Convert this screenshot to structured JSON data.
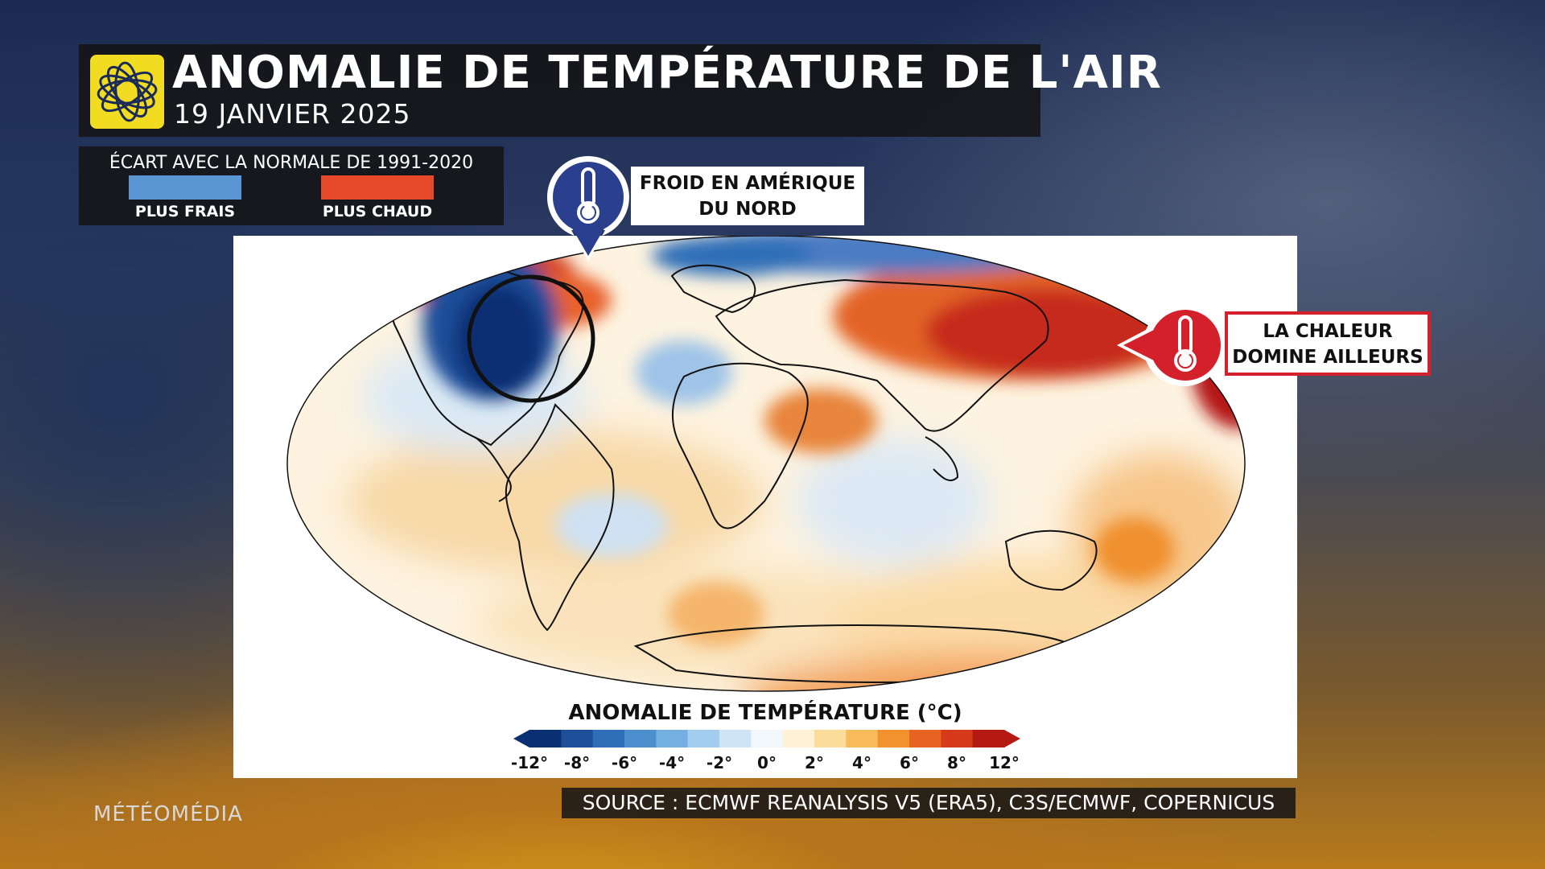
{
  "header": {
    "title": "ANOMALIE DE TEMPÉRATURE DE L'AIR",
    "subtitle": "19 JANVIER 2025"
  },
  "legend": {
    "title": "ÉCART AVEC LA NORMALE DE 1991-2020",
    "cool_label": "PLUS FRAIS",
    "warm_label": "PLUS CHAUD",
    "cool_color": "#5a96d4",
    "warm_color": "#e5492a"
  },
  "callouts": {
    "cold": {
      "line1": "FROID EN AMÉRIQUE",
      "line2": "DU NORD",
      "icon": "thermometer-cold-icon",
      "color": "#2a3f8e"
    },
    "warm": {
      "line1": "LA CHALEUR",
      "line2": "DOMINE AILLEURS",
      "icon": "thermometer-hot-icon",
      "color": "#d4202a"
    }
  },
  "colorbar": {
    "title": "ANOMALIE DE TEMPÉRATURE (°C)",
    "ticks": [
      "-12°",
      "-8°",
      "-6°",
      "-4°",
      "-2°",
      "0°",
      "2°",
      "4°",
      "6°",
      "8°",
      "12°"
    ],
    "colors": [
      "#0b2f73",
      "#1d4e99",
      "#2f6eb8",
      "#4b8fce",
      "#73afe0",
      "#a3cdee",
      "#cfe5f6",
      "#f2f7fb",
      "#fdf2d6",
      "#fbdc9a",
      "#f7bb5c",
      "#f1922f",
      "#e76422",
      "#d63a1b",
      "#b41914"
    ]
  },
  "source": "SOURCE : ECMWF REANALYSIS V5 (ERA5), C3S/ECMWF, COPERNICUS",
  "brand": "MÉTÉOMÉDIA"
}
